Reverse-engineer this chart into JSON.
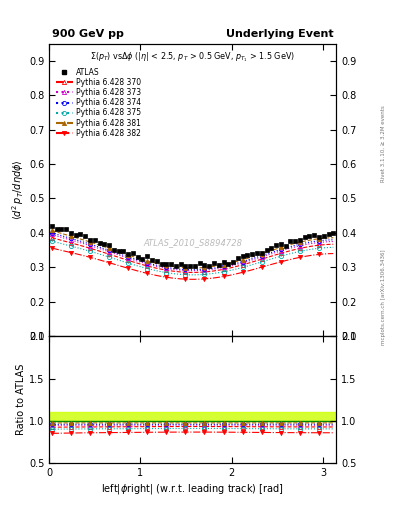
{
  "title_left": "900 GeV pp",
  "title_right": "Underlying Event",
  "subtitle": "Σ(p_{T}) vsΔϕ (|η| < 2.5, p_{T} > 0.5 GeV, p_{T1} > 1.5 GeV)",
  "ylabel_main": "⟨d² p_T/dηdϕ⟩",
  "ylabel_ratio": "Ratio to ATLAS",
  "xlabel": "left|ϕright| (w.r.t. leading track) [rad]",
  "watermark": "ATLAS_2010_S8894728",
  "right_label": "mcplots.cern.ch [arXiv:1306.3436]",
  "right_label2": "Rivet 3.1.10, ≥ 3.2M events",
  "ylim_main": [
    0.1,
    0.95
  ],
  "ylim_ratio": [
    0.5,
    2.0
  ],
  "xlim": [
    0,
    3.14159
  ],
  "yticks_main": [
    0.1,
    0.2,
    0.3,
    0.4,
    0.5,
    0.6,
    0.7,
    0.8,
    0.9
  ],
  "yticks_ratio": [
    0.5,
    1.0,
    1.5,
    2.0
  ],
  "series": [
    {
      "label": "ATLAS",
      "color": "#000000",
      "marker": "s",
      "markersize": 3.5,
      "linestyle": "none",
      "fillstyle": "full"
    },
    {
      "label": "Pythia 6.428 370",
      "color": "#ff0000",
      "marker": "^",
      "markersize": 3,
      "linestyle": "--",
      "fillstyle": "none"
    },
    {
      "label": "Pythia 6.428 373",
      "color": "#cc00cc",
      "marker": "^",
      "markersize": 3,
      "linestyle": ":",
      "fillstyle": "none"
    },
    {
      "label": "Pythia 6.428 374",
      "color": "#0000ff",
      "marker": "o",
      "markersize": 3,
      "linestyle": ":",
      "fillstyle": "none"
    },
    {
      "label": "Pythia 6.428 375",
      "color": "#00aaaa",
      "marker": "o",
      "markersize": 3,
      "linestyle": ":",
      "fillstyle": "none"
    },
    {
      "label": "Pythia 6.428 381",
      "color": "#aa6600",
      "marker": "^",
      "markersize": 3,
      "linestyle": "--",
      "fillstyle": "full"
    },
    {
      "label": "Pythia 6.428 382",
      "color": "#ff0000",
      "marker": "v",
      "markersize": 3,
      "linestyle": "-.",
      "fillstyle": "full"
    }
  ],
  "band_color": "#ccff00",
  "band_alpha": 0.8,
  "band_ymin": 1.0,
  "band_ymax": 1.1
}
